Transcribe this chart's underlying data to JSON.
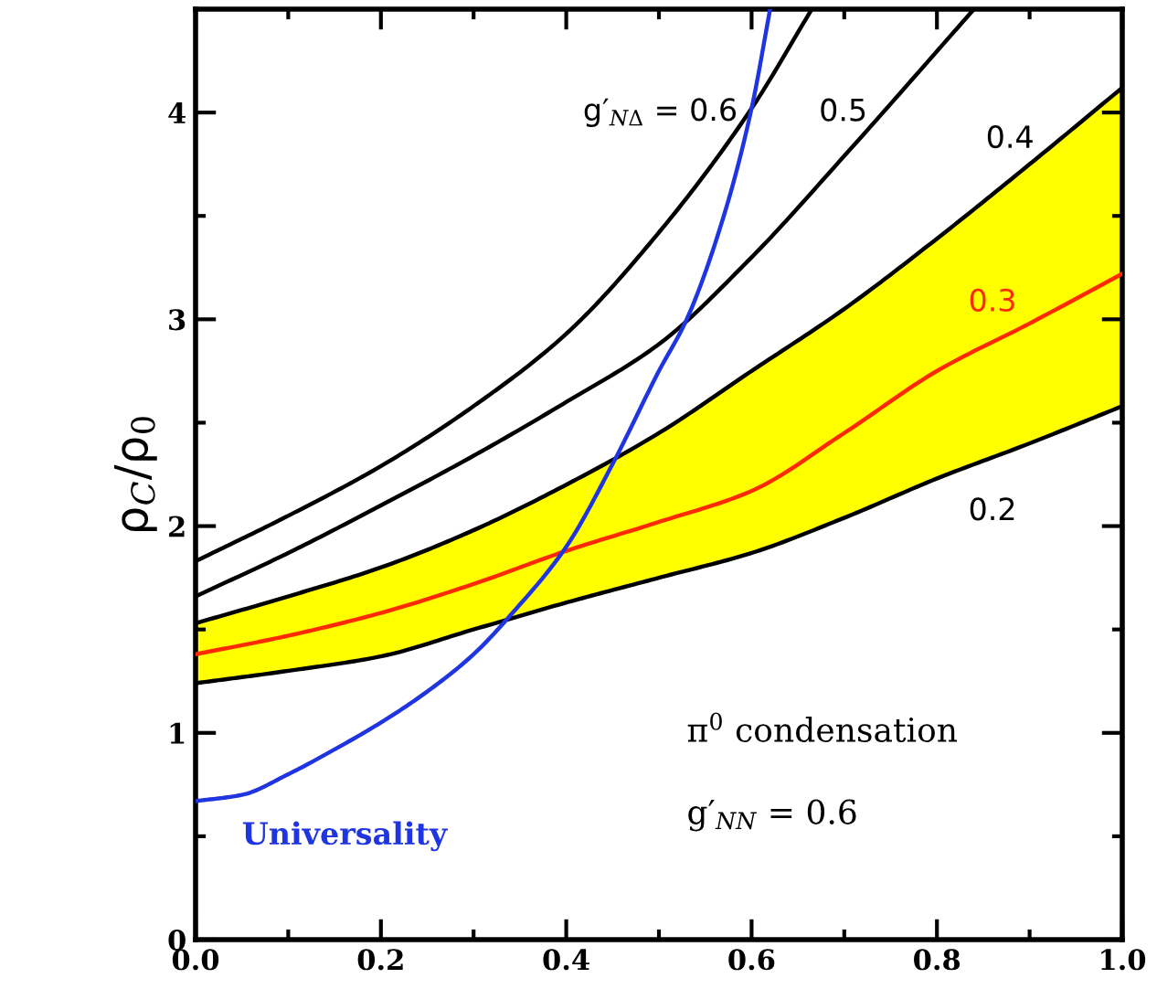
{
  "chart_data": {
    "type": "line",
    "ylabel": "ρ$_{C}$/ρ$_{0}$",
    "xlim": [
      0,
      1.0
    ],
    "ylim": [
      0,
      4.5
    ],
    "xticks": [
      {
        "value": 0,
        "label": "0.0"
      },
      {
        "value": 0.1,
        "label": null
      },
      {
        "value": 0.2,
        "label": "0.2"
      },
      {
        "value": 0.3,
        "label": null
      },
      {
        "value": 0.4,
        "label": "0.4"
      },
      {
        "value": 0.5,
        "label": null
      },
      {
        "value": 0.6,
        "label": "0.6"
      },
      {
        "value": 0.7,
        "label": null
      },
      {
        "value": 0.8,
        "label": "0.8"
      },
      {
        "value": 0.9,
        "label": null
      },
      {
        "value": 1.0,
        "label": "1.0"
      }
    ],
    "yticks": [
      0,
      {
        "value": 0.5,
        "label": null
      },
      1,
      {
        "value": 1.5,
        "label": null
      },
      2,
      {
        "value": 2.5,
        "label": null
      },
      3,
      {
        "value": 3.5,
        "label": null
      },
      4
    ],
    "grid": false,
    "legend": false,
    "marker": "none",
    "line_style": "solid",
    "series": [
      {
        "name": "g′$_{NΔ}$ = 0.6",
        "color": "#000000",
        "x": [
          0,
          0.1,
          0.2,
          0.3,
          0.4,
          0.5,
          0.6,
          0.665
        ],
        "values": [
          1.83,
          2.05,
          2.29,
          2.58,
          2.93,
          3.42,
          4.02,
          4.5
        ]
      },
      {
        "name": "0.5",
        "color": "#000000",
        "x": [
          0,
          0.1,
          0.2,
          0.3,
          0.4,
          0.5,
          0.6,
          0.7,
          0.84
        ],
        "values": [
          1.66,
          1.87,
          2.1,
          2.34,
          2.6,
          2.88,
          3.3,
          3.79,
          4.5
        ]
      },
      {
        "name": "0.4",
        "color": "#000000",
        "x": [
          0,
          0.1,
          0.2,
          0.3,
          0.4,
          0.5,
          0.6,
          0.7,
          0.8,
          0.9,
          1.0
        ],
        "values": [
          1.53,
          1.66,
          1.8,
          1.98,
          2.2,
          2.45,
          2.75,
          3.05,
          3.39,
          3.75,
          4.12
        ]
      },
      {
        "name": "0.3",
        "color": "#ff2a00",
        "x": [
          0,
          0.1,
          0.2,
          0.3,
          0.4,
          0.5,
          0.6,
          0.7,
          0.8,
          0.9,
          1.0
        ],
        "values": [
          1.38,
          1.47,
          1.58,
          1.72,
          1.88,
          2.02,
          2.17,
          2.45,
          2.75,
          2.98,
          3.22
        ],
        "lower": [
          1.24,
          1.3,
          1.37,
          1.5,
          1.63,
          1.75,
          1.87,
          2.04,
          2.23,
          2.4,
          2.58
        ],
        "upper": [
          1.53,
          1.66,
          1.8,
          1.98,
          2.2,
          2.45,
          2.75,
          3.05,
          3.39,
          3.75,
          4.12
        ]
      },
      {
        "name": "0.2",
        "color": "#000000",
        "x": [
          0,
          0.1,
          0.2,
          0.3,
          0.4,
          0.5,
          0.6,
          0.7,
          0.8,
          0.9,
          1.0
        ],
        "values": [
          1.24,
          1.3,
          1.37,
          1.5,
          1.63,
          1.75,
          1.87,
          2.04,
          2.23,
          2.4,
          2.58
        ]
      },
      {
        "name": "Universality",
        "color": "#1f35e0",
        "x": [
          0,
          0.05,
          0.1,
          0.15,
          0.2,
          0.25,
          0.3,
          0.34,
          0.4,
          0.45,
          0.5,
          0.53,
          0.57,
          0.6,
          0.62
        ],
        "values": [
          0.67,
          0.7,
          0.8,
          0.92,
          1.05,
          1.2,
          1.38,
          1.57,
          1.9,
          2.3,
          2.75,
          3.0,
          3.5,
          4.02,
          4.5
        ]
      }
    ],
    "annotations": [
      "π$^{0}$ condensation",
      "g′$_{NN}$ = 0.6"
    ]
  }
}
